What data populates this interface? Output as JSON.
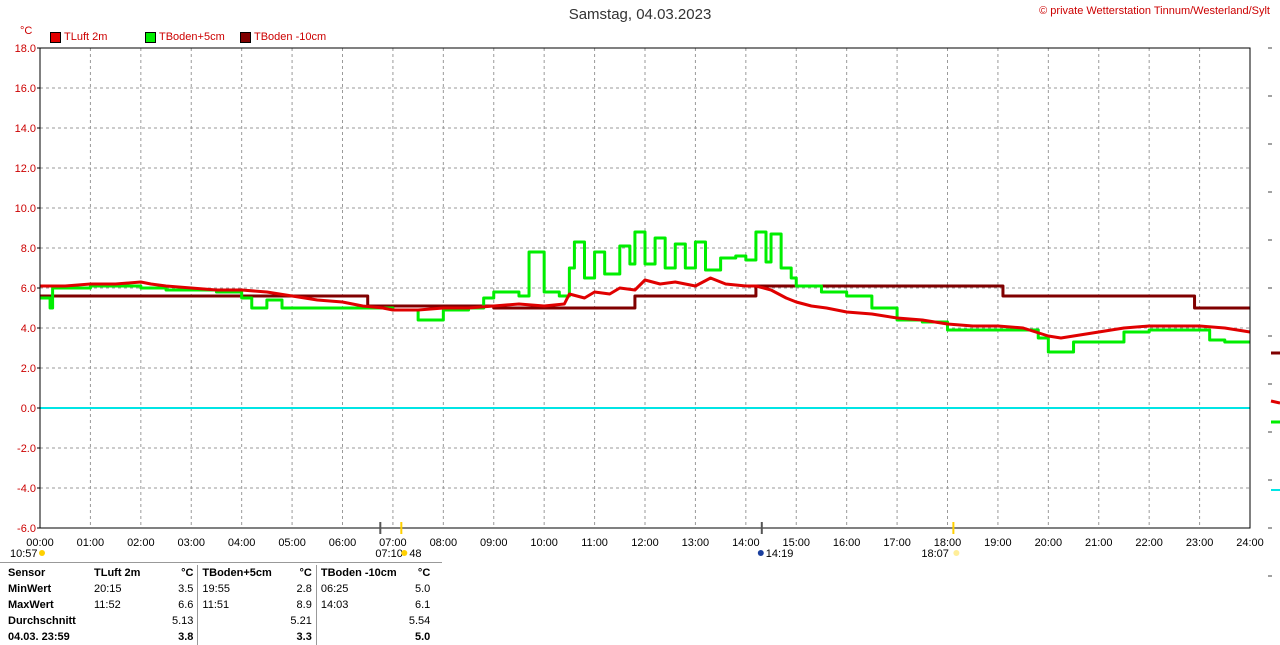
{
  "title": "Samstag, 04.03.2023",
  "copyright": "© private Wetterstation Tinnum/Westerland/Sylt",
  "unit": "°C",
  "legend": [
    {
      "label": "TLuft 2m",
      "color": "#e00000"
    },
    {
      "label": "TBoden+5cm",
      "color": "#00ee00"
    },
    {
      "label": "TBoden -10cm",
      "color": "#800000"
    }
  ],
  "sun": {
    "sunrise": "07:10",
    "sunrise_extra": "48",
    "noon": "14:19",
    "sunset": "18:07",
    "daylength": "10:57"
  },
  "chart_data": {
    "type": "line",
    "title": "Samstag, 04.03.2023",
    "ylabel": "°C",
    "ylim": [
      -6,
      18
    ],
    "xlim": [
      0,
      24
    ],
    "yticks": [
      "18.0",
      "16.0",
      "14.0",
      "12.0",
      "10.0",
      "8.0",
      "6.0",
      "4.0",
      "2.0",
      "0.0",
      "-2.0",
      "-4.0",
      "-6.0"
    ],
    "xticks": [
      "00:00",
      "01:00",
      "02:00",
      "03:00",
      "04:00",
      "05:00",
      "06:00",
      "07:00",
      "08:00",
      "09:00",
      "10:00",
      "11:00",
      "12:00",
      "13:00",
      "14:00",
      "15:00",
      "16:00",
      "17:00",
      "18:00",
      "19:00",
      "20:00",
      "21:00",
      "22:00",
      "23:00",
      "24:00"
    ],
    "grid": true,
    "zero_line_color": "#00e5e5",
    "series": [
      {
        "name": "TLuft 2m",
        "color": "#e00000",
        "x": [
          0,
          0.5,
          1,
          1.5,
          2,
          2.2,
          2.5,
          3,
          3.5,
          4,
          4.5,
          5,
          5.5,
          6,
          6.4,
          6.8,
          7,
          7.5,
          8,
          8.5,
          9,
          9.5,
          10,
          10.4,
          10.5,
          10.8,
          11,
          11.3,
          11.5,
          11.8,
          12,
          12.3,
          12.6,
          13,
          13.3,
          13.6,
          14,
          14.2,
          14.5,
          14.8,
          15,
          15.3,
          15.6,
          16,
          16.5,
          17,
          17.5,
          18,
          18.5,
          19,
          19.5,
          20,
          20.25,
          20.5,
          21,
          21.5,
          22,
          22.5,
          23,
          23.5,
          24
        ],
        "y": [
          6.1,
          6.1,
          6.2,
          6.2,
          6.3,
          6.2,
          6.1,
          6.0,
          5.9,
          5.9,
          5.8,
          5.6,
          5.4,
          5.3,
          5.1,
          5.0,
          4.9,
          4.9,
          5.0,
          5.0,
          5.1,
          5.2,
          5.1,
          5.2,
          5.7,
          5.5,
          5.8,
          5.7,
          6.0,
          5.9,
          6.4,
          6.2,
          6.3,
          6.1,
          6.5,
          6.2,
          6.1,
          6.1,
          5.9,
          5.5,
          5.3,
          5.1,
          5.0,
          4.8,
          4.7,
          4.5,
          4.4,
          4.2,
          4.1,
          4.1,
          4.0,
          3.6,
          3.5,
          3.6,
          3.8,
          4.0,
          4.1,
          4.1,
          4.1,
          4.0,
          3.8
        ]
      },
      {
        "name": "TBoden+5cm",
        "color": "#00ee00",
        "x": [
          0,
          0.2,
          0.25,
          1,
          2,
          2.5,
          3,
          3.5,
          4,
          4.2,
          4.5,
          4.8,
          5,
          6,
          6.5,
          7,
          7.5,
          7.8,
          8,
          8.5,
          8.8,
          9,
          9.5,
          9.7,
          10,
          10.3,
          10.5,
          10.6,
          10.8,
          11,
          11.2,
          11.5,
          11.7,
          11.8,
          12,
          12.2,
          12.4,
          12.6,
          12.8,
          13,
          13.2,
          13.5,
          13.8,
          14,
          14.2,
          14.4,
          14.5,
          14.7,
          14.9,
          15,
          15.5,
          16,
          16.5,
          17,
          17.5,
          18,
          18.5,
          19,
          19.5,
          19.8,
          20,
          20.5,
          21,
          21.5,
          22,
          22.5,
          23,
          23.2,
          23.5,
          24
        ],
        "y": [
          5.5,
          5.0,
          6.0,
          6.1,
          6.0,
          5.9,
          5.9,
          5.8,
          5.5,
          5.0,
          5.4,
          5.0,
          5.0,
          5.0,
          5.0,
          4.9,
          4.4,
          4.4,
          4.9,
          5.0,
          5.5,
          5.8,
          5.6,
          7.8,
          5.8,
          5.6,
          7.0,
          8.3,
          6.5,
          7.8,
          6.7,
          8.1,
          7.2,
          8.8,
          7.2,
          8.5,
          7.0,
          8.2,
          7.0,
          8.3,
          6.9,
          7.5,
          7.6,
          7.4,
          8.8,
          7.3,
          8.7,
          7.0,
          6.5,
          6.1,
          5.8,
          5.6,
          5.0,
          4.4,
          4.3,
          3.9,
          3.9,
          3.9,
          3.9,
          3.5,
          2.8,
          3.3,
          3.3,
          3.8,
          3.9,
          3.9,
          3.9,
          3.4,
          3.3,
          3.3
        ]
      },
      {
        "name": "TBoden -10cm",
        "color": "#800000",
        "x": [
          0,
          6.4,
          6.5,
          8.8,
          9,
          11.7,
          11.8,
          14.1,
          14.2,
          19.05,
          19.1,
          22.8,
          22.9,
          24
        ],
        "y": [
          5.6,
          5.6,
          5.1,
          5.1,
          5.0,
          5.0,
          5.6,
          5.6,
          6.1,
          6.1,
          5.6,
          5.6,
          5.0,
          5.0
        ]
      }
    ]
  },
  "stats": {
    "header": [
      "Sensor",
      "TLuft 2m",
      "°C",
      "TBoden+5cm",
      "°C",
      "TBoden -10cm",
      "°C"
    ],
    "rows": [
      [
        "MinWert",
        "20:15",
        "3.5",
        "19:55",
        "2.8",
        "06:25",
        "5.0"
      ],
      [
        "MaxWert",
        "11:52",
        "6.6",
        "11:51",
        "8.9",
        "14:03",
        "6.1"
      ],
      [
        "Durchschnitt",
        "",
        "5.13",
        "",
        "5.21",
        "",
        "5.54"
      ],
      [
        "04.03. 23:59",
        "",
        "3.8",
        "",
        "3.3",
        "",
        "5.0"
      ]
    ]
  }
}
